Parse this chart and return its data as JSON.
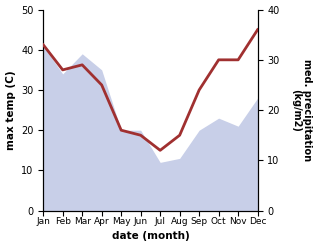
{
  "months": [
    "Jan",
    "Feb",
    "Mar",
    "Apr",
    "May",
    "Jun",
    "Jul",
    "Aug",
    "Sep",
    "Oct",
    "Nov",
    "Dec"
  ],
  "max_temp": [
    41,
    34,
    39,
    35,
    20,
    20,
    12,
    13,
    20,
    23,
    21,
    28
  ],
  "precipitation": [
    33,
    28,
    29,
    25,
    16,
    15,
    12,
    15,
    24,
    30,
    30,
    36
  ],
  "temp_fill_color": "#c8cfe8",
  "precip_color": "#a03030",
  "xlabel": "date (month)",
  "ylabel_left": "max temp (C)",
  "ylabel_right": "med. precipitation\n(kg/m2)",
  "ylim_left": [
    0,
    50
  ],
  "ylim_right": [
    0,
    40
  ],
  "yticks_left": [
    0,
    10,
    20,
    30,
    40,
    50
  ],
  "yticks_right": [
    0,
    10,
    20,
    30,
    40
  ],
  "background_color": "#ffffff"
}
